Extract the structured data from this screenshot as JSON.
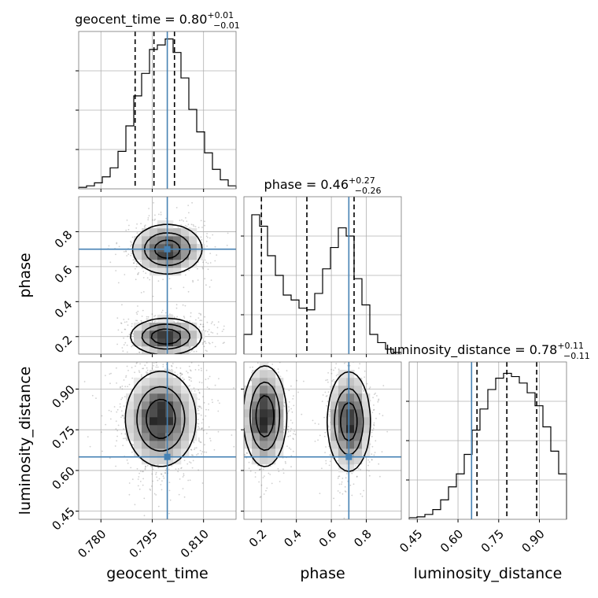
{
  "figure": {
    "type": "corner-plot"
  },
  "colors": {
    "truth": "#4682b4",
    "hist": "#000000",
    "grid": "#b0b0b0",
    "scatter": "#555555"
  },
  "chart_data": {
    "type": "heatmap",
    "parameters": [
      "geocent_time",
      "phase",
      "luminosity_distance"
    ],
    "truths": {
      "geocent_time": 0.7994,
      "phase": 0.7,
      "luminosity_distance": 0.65
    },
    "quantiles": {
      "geocent_time": [
        0.79,
        0.7955,
        0.8015
      ],
      "phase": [
        0.2,
        0.46,
        0.73
      ],
      "luminosity_distance": [
        0.67,
        0.78,
        0.89
      ]
    },
    "titles": {
      "geocent_time": {
        "prefix": "geocent_time = ",
        "median": "0.80",
        "plus": "+0.01",
        "minus": "−0.01"
      },
      "phase": {
        "prefix": "phase = ",
        "median": "0.46",
        "plus": "+0.27",
        "minus": "−0.26"
      },
      "luminosity_distance": {
        "prefix": "luminosity_distance = ",
        "median": "0.78",
        "plus": "+0.11",
        "minus": "−0.11"
      }
    },
    "ranges": {
      "geocent_time": [
        0.7735,
        0.8195
      ],
      "phase": [
        0.1,
        1.0
      ],
      "luminosity_distance": [
        0.42,
        1.0
      ]
    },
    "ticks": {
      "geocent_time": [
        0.78,
        0.795,
        0.81
      ],
      "phase_x": [
        0.2,
        0.4,
        0.6,
        0.8
      ],
      "phase_y": [
        0.2,
        0.4,
        0.6,
        0.8
      ],
      "luminosity_distance": [
        0.45,
        0.6,
        0.75,
        0.9
      ]
    },
    "tick_labels": {
      "geocent_time": [
        "0.780",
        "0.795",
        "0.810"
      ],
      "phase_x": [
        "0.2",
        "0.4",
        "0.6",
        "0.8"
      ],
      "phase_y": [
        "0.2",
        "0.4",
        "0.6",
        "0.8"
      ],
      "luminosity_distance": [
        "0.45",
        "0.60",
        "0.75",
        "0.90"
      ]
    },
    "axis_labels": {
      "geocent_time": "geocent_time",
      "phase": "phase",
      "luminosity_distance": "luminosity_distance"
    },
    "hist_geocent_time": [
      0.01,
      0.02,
      0.04,
      0.08,
      0.14,
      0.25,
      0.42,
      0.62,
      0.77,
      0.93,
      0.96,
      1.0,
      0.91,
      0.74,
      0.53,
      0.38,
      0.24,
      0.13,
      0.06,
      0.02
    ],
    "hist_phase": [
      0.12,
      0.85,
      0.78,
      0.6,
      0.48,
      0.36,
      0.33,
      0.28,
      0.27,
      0.37,
      0.52,
      0.65,
      0.77,
      0.72,
      0.46,
      0.3,
      0.12,
      0.07,
      0.03,
      0.01
    ],
    "hist_luminosity_distance": [
      0.01,
      0.015,
      0.03,
      0.06,
      0.12,
      0.2,
      0.28,
      0.4,
      0.55,
      0.68,
      0.8,
      0.87,
      0.9,
      0.88,
      0.84,
      0.78,
      0.7,
      0.57,
      0.42,
      0.28
    ],
    "hist_ylim": {
      "geocent_time": 1.05,
      "phase": 0.96,
      "luminosity_distance": 0.97
    },
    "density_geocent_time_phase": [
      {
        "x": 0.7994,
        "y": 0.7,
        "sx": 0.005,
        "sy": 0.07,
        "w": 1.0
      },
      {
        "x": 0.799,
        "y": 0.2,
        "sx": 0.005,
        "sy": 0.05,
        "w": 1.1
      }
    ],
    "density_geocent_time_luminosity_distance": [
      {
        "x": 0.7975,
        "y": 0.79,
        "sx": 0.005,
        "sy": 0.085,
        "w": 1.0
      }
    ],
    "density_phase_luminosity_distance": [
      {
        "x": 0.22,
        "y": 0.8,
        "sx": 0.06,
        "sy": 0.09,
        "w": 1.0
      },
      {
        "x": 0.7,
        "y": 0.78,
        "sx": 0.06,
        "sy": 0.09,
        "w": 0.95
      }
    ],
    "contour_levels": [
      0.12,
      0.38,
      0.7
    ],
    "grid": true
  }
}
